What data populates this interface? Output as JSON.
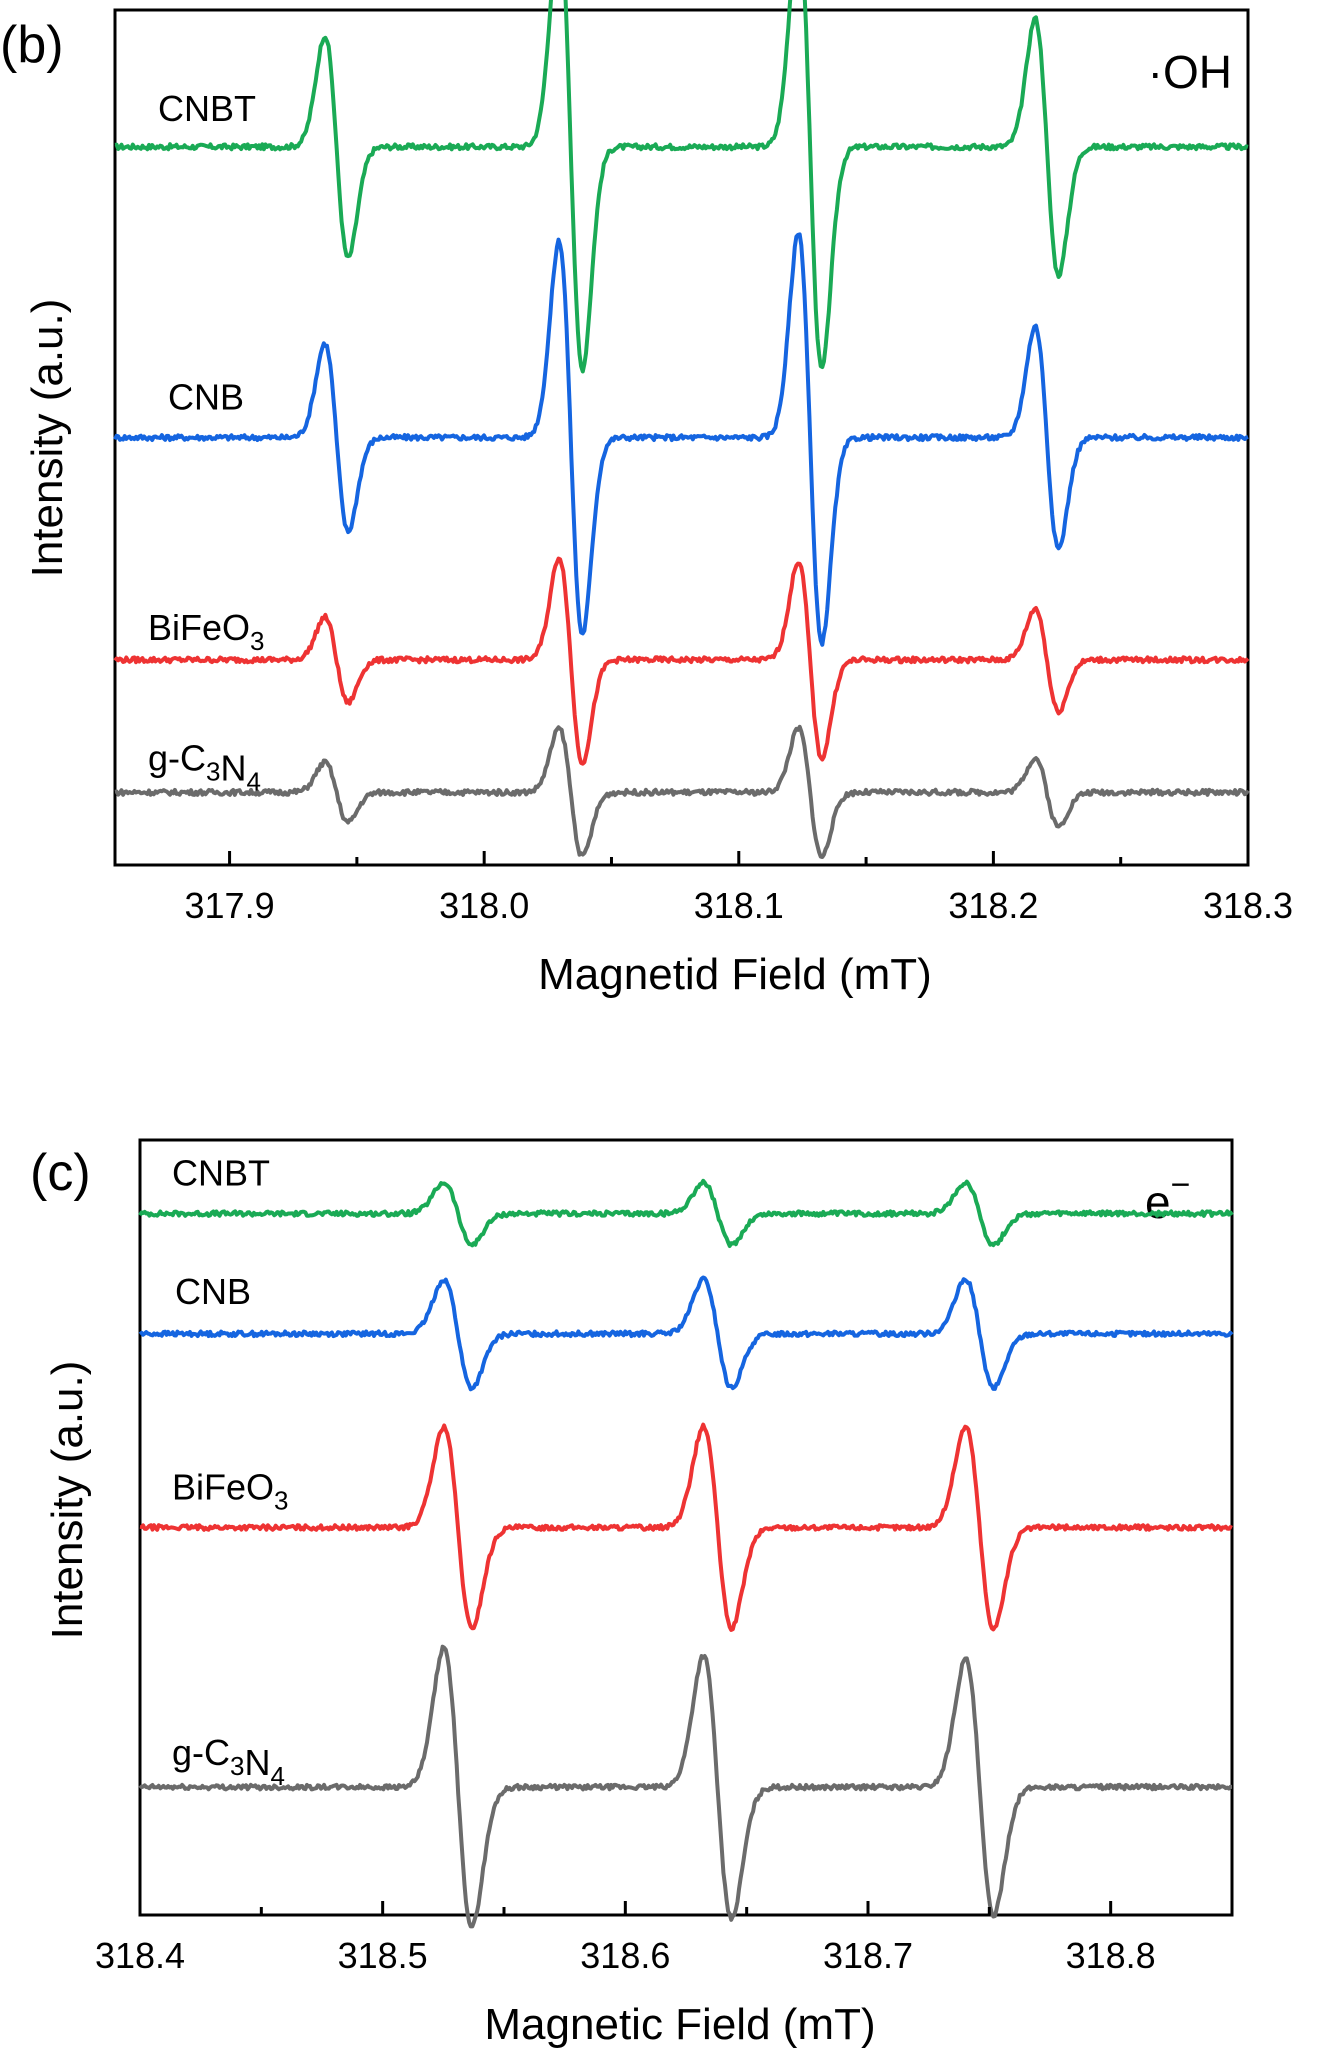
{
  "chart_data": [
    {
      "panel": "(b)",
      "type": "line",
      "title": "",
      "annotation": "·OH",
      "xlabel": "Magnetid Field (mT)",
      "ylabel": "Intensity (a.u.)",
      "xlim": [
        317.855,
        318.3
      ],
      "ylim": [
        0,
        1
      ],
      "grid": false,
      "x_ticks": [
        "317.9",
        "318.0",
        "318.1",
        "318.2",
        "318.3"
      ],
      "x_tick_values": [
        317.9,
        318.0,
        318.1,
        318.2,
        318.3
      ],
      "line_centers": [
        317.942,
        318.034,
        318.128,
        318.221
      ],
      "series": [
        {
          "name": "CNBT",
          "label_parts": [
            [
              "CNBT",
              ""
            ]
          ],
          "color": "#1aaa55",
          "baseline": 0.84,
          "amplitudes": [
            0.26,
            0.52,
            0.52,
            0.3
          ]
        },
        {
          "name": "CNB",
          "label_parts": [
            [
              "CNB",
              ""
            ]
          ],
          "color": "#1565e0",
          "baseline": 0.5,
          "amplitudes": [
            0.22,
            0.46,
            0.48,
            0.26
          ]
        },
        {
          "name": "BiFeO3",
          "label_parts": [
            [
              "BiFeO",
              ""
            ],
            [
              "3",
              "sub"
            ]
          ],
          "color": "#ee3333",
          "baseline": 0.24,
          "amplitudes": [
            0.1,
            0.24,
            0.23,
            0.12
          ]
        },
        {
          "name": "g-C3N4",
          "label_parts": [
            [
              "g-C",
              ""
            ],
            [
              "3",
              "sub"
            ],
            [
              "N",
              ""
            ],
            [
              "4",
              "sub"
            ]
          ],
          "color": "#6b6b6b",
          "baseline": 0.085,
          "amplitudes": [
            0.07,
            0.15,
            0.15,
            0.08
          ]
        }
      ]
    },
    {
      "panel": "(c)",
      "type": "line",
      "title": "",
      "annotation": "e",
      "annotation_sup": "−",
      "xlabel": "Magnetic Field (mT)",
      "ylabel": "Intensity (a.u.)",
      "xlim": [
        318.4,
        318.85
      ],
      "ylim": [
        0,
        1
      ],
      "grid": false,
      "x_ticks": [
        "318.4",
        "318.5",
        "318.6",
        "318.7",
        "318.8"
      ],
      "x_tick_values": [
        318.4,
        318.5,
        318.6,
        318.7,
        318.8
      ],
      "line_centers": [
        318.531,
        318.638,
        318.746
      ],
      "series": [
        {
          "name": "CNBT",
          "label_parts": [
            [
              "CNBT",
              ""
            ]
          ],
          "color": "#1aaa55",
          "baseline": 0.905,
          "amplitudes": [
            0.08,
            0.08,
            0.08
          ]
        },
        {
          "name": "CNB",
          "label_parts": [
            [
              "CNB",
              ""
            ]
          ],
          "color": "#1565e0",
          "baseline": 0.75,
          "amplitudes": [
            0.14,
            0.14,
            0.14
          ]
        },
        {
          "name": "BiFeO3",
          "label_parts": [
            [
              "BiFeO",
              ""
            ],
            [
              "3",
              "sub"
            ]
          ],
          "color": "#ee3333",
          "baseline": 0.5,
          "amplitudes": [
            0.26,
            0.26,
            0.26
          ]
        },
        {
          "name": "g-C3N4",
          "label_parts": [
            [
              "g-C",
              ""
            ],
            [
              "3",
              "sub"
            ],
            [
              "N",
              ""
            ],
            [
              "4",
              "sub"
            ]
          ],
          "color": "#6b6b6b",
          "baseline": 0.165,
          "amplitudes": [
            0.36,
            0.34,
            0.33
          ]
        }
      ]
    }
  ]
}
